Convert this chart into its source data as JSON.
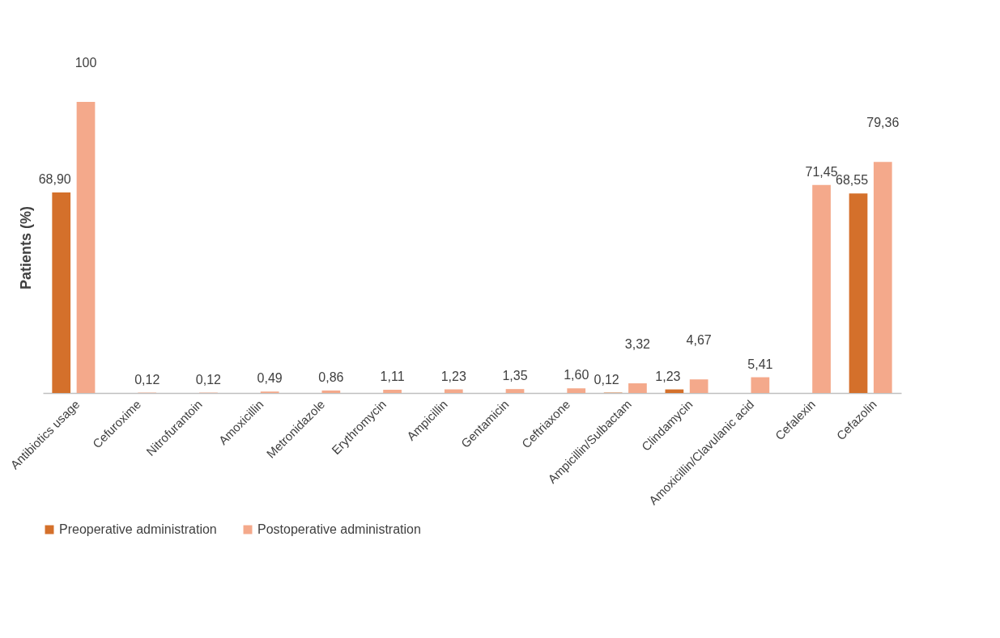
{
  "chart_data": {
    "type": "bar",
    "ylabel": "Patients (%)",
    "categories": [
      "Antibiotics usage",
      "Cefuroxime",
      "Nitrofurantoin",
      "Amoxicillin",
      "Metronidazole",
      "Erythromycin",
      "Ampicillin",
      "Gentamicin",
      "Ceftriaxone",
      "Ampicillin/Sulbactam",
      "Clindamycin",
      "Amoxicillin/Clavulanic acid",
      "Cefalexin",
      "Cefazolin"
    ],
    "series": [
      {
        "name": "Preoperative administration",
        "color": "#d4702b",
        "values": [
          68.9,
          null,
          null,
          null,
          null,
          null,
          null,
          null,
          null,
          0.12,
          1.23,
          null,
          null,
          68.55
        ],
        "value_labels": [
          "68,90",
          null,
          null,
          null,
          null,
          null,
          null,
          null,
          null,
          "0,12",
          "1,23",
          null,
          null,
          "68,55"
        ]
      },
      {
        "name": "Postoperative administration",
        "color": "#f4a98b",
        "values": [
          100,
          0.12,
          0.12,
          0.49,
          0.86,
          1.11,
          1.23,
          1.35,
          1.6,
          3.32,
          4.67,
          5.41,
          71.45,
          79.36
        ],
        "value_labels": [
          "100",
          "0,12",
          "0,12",
          "0,49",
          "0,86",
          "1,11",
          "1,23",
          "1,35",
          "1,60",
          "3,32",
          "4,67",
          "5,41",
          "71,45",
          "79,36"
        ]
      }
    ],
    "tick_labels": "x",
    "grid": false,
    "legend": "bottom"
  }
}
